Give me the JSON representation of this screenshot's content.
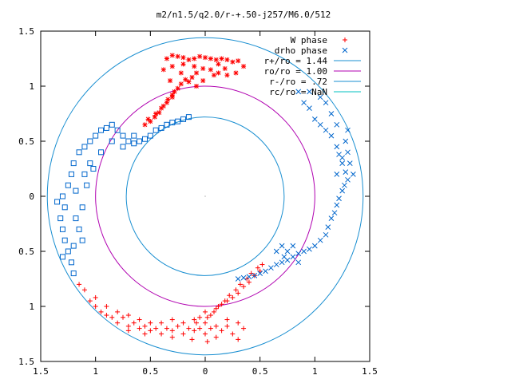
{
  "chart_data": {
    "type": "scatter",
    "title": "m2/n1.5/q2.0/r-+.50-j257/M6.0/512",
    "xlim": [
      -1.5,
      1.5
    ],
    "ylim": [
      -1.5,
      1.5
    ],
    "x_tick_values": [
      -1.5,
      -1,
      -0.5,
      0,
      0.5,
      1,
      1.5
    ],
    "x_tick_labels": [
      "1.5",
      "1",
      "0.5",
      "0",
      "0.5",
      "1",
      "1.5"
    ],
    "y_tick_values": [
      1.5,
      1,
      0.5,
      0,
      -0.5,
      -1,
      -1.5
    ],
    "y_tick_labels": [
      "1.5",
      "1",
      "0.5",
      "0",
      "0.5",
      "1",
      "1.5"
    ],
    "legend_position": "top-right",
    "grid": false,
    "series": [
      {
        "name": "W phase",
        "marker": "+/*",
        "color": "#ff0000",
        "points": [
          [
            -0.35,
            1.25
          ],
          [
            -0.3,
            1.28
          ],
          [
            -0.25,
            1.27
          ],
          [
            -0.2,
            1.26
          ],
          [
            -0.15,
            1.24
          ],
          [
            -0.1,
            1.25
          ],
          [
            -0.05,
            1.27
          ],
          [
            0.0,
            1.26
          ],
          [
            0.05,
            1.25
          ],
          [
            0.1,
            1.24
          ],
          [
            0.15,
            1.25
          ],
          [
            0.2,
            1.24
          ],
          [
            0.25,
            1.22
          ],
          [
            0.3,
            1.23
          ],
          [
            0.35,
            1.18
          ],
          [
            0.28,
            1.12
          ],
          [
            0.2,
            1.1
          ],
          [
            0.12,
            1.12
          ],
          [
            0.05,
            1.15
          ],
          [
            -0.02,
            1.16
          ],
          [
            -0.08,
            1.12
          ],
          [
            -0.12,
            1.08
          ],
          [
            -0.18,
            1.06
          ],
          [
            -0.22,
            1.02
          ],
          [
            -0.25,
            0.98
          ],
          [
            -0.3,
            0.92
          ],
          [
            -0.34,
            0.88
          ],
          [
            -0.38,
            0.82
          ],
          [
            -0.42,
            0.76
          ],
          [
            -0.46,
            0.72
          ],
          [
            -0.5,
            0.68
          ],
          [
            -0.55,
            0.65
          ],
          [
            -0.52,
            0.7
          ],
          [
            -0.45,
            0.75
          ],
          [
            -0.4,
            0.8
          ],
          [
            -0.35,
            0.85
          ],
          [
            -0.3,
            0.9
          ],
          [
            -0.28,
            0.95
          ],
          [
            -0.32,
            1.05
          ],
          [
            -0.38,
            1.15
          ],
          [
            -0.3,
            1.18
          ],
          [
            -0.22,
            1.12
          ],
          [
            -0.15,
            1.04
          ],
          [
            -0.08,
            1.0
          ],
          [
            -0.02,
            1.05
          ],
          [
            0.08,
            1.1
          ],
          [
            0.18,
            1.16
          ],
          [
            0.12,
            1.2
          ],
          [
            -0.2,
            1.2
          ],
          [
            -0.1,
            1.18
          ],
          [
            -1.1,
            -0.85
          ],
          [
            -1.05,
            -0.95
          ],
          [
            -1.0,
            -1.0
          ],
          [
            -0.95,
            -1.05
          ],
          [
            -0.9,
            -1.08
          ],
          [
            -0.85,
            -1.1
          ],
          [
            -0.8,
            -1.15
          ],
          [
            -0.75,
            -1.1
          ],
          [
            -0.7,
            -1.18
          ],
          [
            -0.65,
            -1.15
          ],
          [
            -0.6,
            -1.2
          ],
          [
            -0.55,
            -1.18
          ],
          [
            -0.5,
            -1.22
          ],
          [
            -0.45,
            -1.2
          ],
          [
            -0.4,
            -1.25
          ],
          [
            -0.35,
            -1.2
          ],
          [
            -0.3,
            -1.22
          ],
          [
            -0.25,
            -1.18
          ],
          [
            -0.2,
            -1.25
          ],
          [
            -0.15,
            -1.2
          ],
          [
            -0.1,
            -1.22
          ],
          [
            -0.05,
            -1.2
          ],
          [
            0.0,
            -1.25
          ],
          [
            0.05,
            -1.2
          ],
          [
            0.1,
            -1.28
          ],
          [
            0.15,
            -1.22
          ],
          [
            0.2,
            -1.18
          ],
          [
            0.25,
            -1.25
          ],
          [
            0.3,
            -1.3
          ],
          [
            0.35,
            -1.2
          ],
          [
            -0.05,
            -1.1
          ],
          [
            0.0,
            -1.05
          ],
          [
            0.05,
            -1.08
          ],
          [
            0.1,
            -1.02
          ],
          [
            0.15,
            -0.98
          ],
          [
            0.2,
            -0.95
          ],
          [
            0.25,
            -0.92
          ],
          [
            0.3,
            -0.88
          ],
          [
            0.35,
            -0.82
          ],
          [
            0.4,
            -0.78
          ],
          [
            0.45,
            -0.72
          ],
          [
            0.5,
            -0.68
          ],
          [
            0.52,
            -0.62
          ],
          [
            0.48,
            -0.65
          ],
          [
            0.42,
            -0.7
          ],
          [
            0.38,
            -0.75
          ],
          [
            0.32,
            -0.8
          ],
          [
            0.28,
            -0.85
          ],
          [
            0.22,
            -0.9
          ],
          [
            0.18,
            -0.95
          ],
          [
            0.12,
            -1.0
          ],
          [
            0.08,
            -1.05
          ],
          [
            0.02,
            -1.1
          ],
          [
            -0.08,
            -1.15
          ],
          [
            -1.15,
            -0.8
          ],
          [
            -1.0,
            -0.92
          ],
          [
            -0.9,
            -1.0
          ],
          [
            -0.8,
            -1.05
          ],
          [
            -0.7,
            -1.08
          ],
          [
            -0.6,
            -1.12
          ],
          [
            -0.5,
            -1.15
          ],
          [
            -0.4,
            -1.15
          ],
          [
            -0.3,
            -1.12
          ],
          [
            -0.2,
            -1.15
          ],
          [
            -0.1,
            -1.12
          ],
          [
            0.0,
            -1.15
          ],
          [
            0.1,
            -1.18
          ],
          [
            0.2,
            -1.12
          ],
          [
            0.3,
            -1.15
          ],
          [
            0.02,
            -1.32
          ],
          [
            -0.12,
            -1.3
          ],
          [
            -0.3,
            -1.28
          ],
          [
            -0.55,
            -1.25
          ],
          [
            -0.7,
            -1.22
          ]
        ]
      },
      {
        "name": "drho phase",
        "marker": "x/square",
        "color": "#0066cc",
        "points": [
          [
            0.85,
            0.95
          ],
          [
            0.9,
            0.85
          ],
          [
            0.95,
            0.8
          ],
          [
            1.0,
            0.7
          ],
          [
            1.05,
            0.65
          ],
          [
            1.1,
            0.6
          ],
          [
            1.15,
            0.55
          ],
          [
            1.2,
            0.45
          ],
          [
            1.22,
            0.38
          ],
          [
            1.25,
            0.3
          ],
          [
            1.28,
            0.22
          ],
          [
            1.3,
            0.15
          ],
          [
            1.27,
            0.1
          ],
          [
            1.25,
            0.05
          ],
          [
            1.22,
            -0.02
          ],
          [
            1.2,
            -0.08
          ],
          [
            1.18,
            -0.15
          ],
          [
            1.15,
            -0.2
          ],
          [
            1.12,
            -0.28
          ],
          [
            1.1,
            -0.35
          ],
          [
            1.05,
            -0.4
          ],
          [
            1.0,
            -0.45
          ],
          [
            0.95,
            -0.48
          ],
          [
            0.9,
            -0.5
          ],
          [
            0.85,
            -0.52
          ],
          [
            0.8,
            -0.55
          ],
          [
            0.75,
            -0.58
          ],
          [
            0.7,
            -0.6
          ],
          [
            0.65,
            -0.62
          ],
          [
            0.6,
            -0.65
          ],
          [
            0.55,
            -0.68
          ],
          [
            0.5,
            -0.7
          ],
          [
            0.45,
            -0.72
          ],
          [
            0.4,
            -0.73
          ],
          [
            0.35,
            -0.74
          ],
          [
            0.3,
            -0.75
          ],
          [
            1.2,
            0.2
          ],
          [
            1.25,
            0.35
          ],
          [
            1.3,
            0.4
          ],
          [
            1.32,
            0.3
          ],
          [
            1.35,
            0.2
          ],
          [
            1.28,
            0.5
          ],
          [
            1.2,
            0.65
          ],
          [
            1.15,
            0.75
          ],
          [
            1.1,
            0.85
          ],
          [
            1.05,
            0.9
          ],
          [
            0.95,
            0.95
          ],
          [
            1.3,
            0.6
          ],
          [
            0.7,
            -0.45
          ],
          [
            0.75,
            -0.5
          ],
          [
            0.8,
            -0.45
          ],
          [
            0.85,
            -0.6
          ],
          [
            0.65,
            -0.5
          ],
          [
            0.72,
            -0.55
          ],
          [
            -1.3,
            0.0
          ],
          [
            -1.28,
            -0.1
          ],
          [
            -1.32,
            -0.2
          ],
          [
            -1.3,
            -0.3
          ],
          [
            -1.28,
            -0.4
          ],
          [
            -1.25,
            -0.5
          ],
          [
            -1.22,
            -0.6
          ],
          [
            -1.2,
            -0.7
          ],
          [
            -1.25,
            0.1
          ],
          [
            -1.22,
            0.2
          ],
          [
            -1.2,
            0.3
          ],
          [
            -1.15,
            0.4
          ],
          [
            -1.1,
            0.45
          ],
          [
            -1.05,
            0.5
          ],
          [
            -1.0,
            0.55
          ],
          [
            -0.95,
            0.6
          ],
          [
            -0.9,
            0.62
          ],
          [
            -0.85,
            0.65
          ],
          [
            -0.8,
            0.6
          ],
          [
            -0.75,
            0.55
          ],
          [
            -0.7,
            0.5
          ],
          [
            -0.65,
            0.48
          ],
          [
            -0.6,
            0.5
          ],
          [
            -0.55,
            0.52
          ],
          [
            -0.5,
            0.55
          ],
          [
            -0.45,
            0.6
          ],
          [
            -0.4,
            0.62
          ],
          [
            -0.35,
            0.65
          ],
          [
            -0.3,
            0.67
          ],
          [
            -0.25,
            0.68
          ],
          [
            -0.2,
            0.7
          ],
          [
            -0.15,
            0.72
          ],
          [
            -1.18,
            -0.2
          ],
          [
            -1.15,
            -0.3
          ],
          [
            -1.12,
            -0.4
          ],
          [
            -1.18,
            0.05
          ],
          [
            -1.1,
            0.2
          ],
          [
            -1.05,
            0.3
          ],
          [
            -0.95,
            0.4
          ],
          [
            -0.85,
            0.5
          ],
          [
            -0.75,
            0.45
          ],
          [
            -0.65,
            0.55
          ],
          [
            -1.35,
            -0.05
          ],
          [
            -1.3,
            -0.55
          ],
          [
            -1.2,
            -0.45
          ],
          [
            -1.12,
            -0.1
          ],
          [
            -1.08,
            0.1
          ],
          [
            -1.02,
            0.25
          ]
        ]
      },
      {
        "name": "r+/ro = 1.44",
        "type": "circle",
        "radius": 1.44,
        "color": "#1a8fd1"
      },
      {
        "name": "ro/ro = 1.00",
        "type": "circle",
        "radius": 1.0,
        "color": "#b000b0"
      },
      {
        "name": "r-/ro = .72",
        "type": "circle",
        "radius": 0.72,
        "color": "#1a8fd1"
      },
      {
        "name": "rc/ro = NaN",
        "type": "circle",
        "radius": 0,
        "color": "#00c0c0"
      }
    ]
  }
}
